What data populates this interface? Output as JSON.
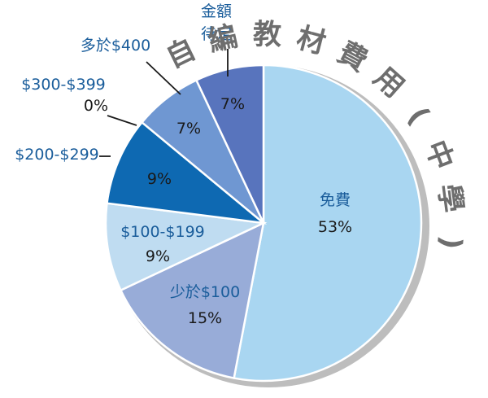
{
  "chart_data": {
    "type": "pie",
    "title": "自編教材費用(中學)",
    "unit": "%",
    "slices": [
      {
        "name": "免費",
        "value": 53,
        "label": "53%",
        "color": "#a9d6f1"
      },
      {
        "name": "少於$100",
        "value": 15,
        "label": "15%",
        "color": "#98acd8"
      },
      {
        "name": "$100-$199",
        "value": 9,
        "label": "9%",
        "color": "#bfdcf1"
      },
      {
        "name": "$200-$299",
        "value": 9,
        "label": "9%",
        "color": "#0e69b2"
      },
      {
        "name": "$300-$399",
        "value": 0,
        "label": "0%",
        "color": "#5f8ccc"
      },
      {
        "name": "多於$400",
        "value": 7,
        "label": "7%",
        "color": "#6f97d2"
      },
      {
        "name": "金額待定",
        "value": 7,
        "label": "7%",
        "color": "#5874bd"
      }
    ],
    "legend": "none",
    "data_labels": "category and percent"
  }
}
